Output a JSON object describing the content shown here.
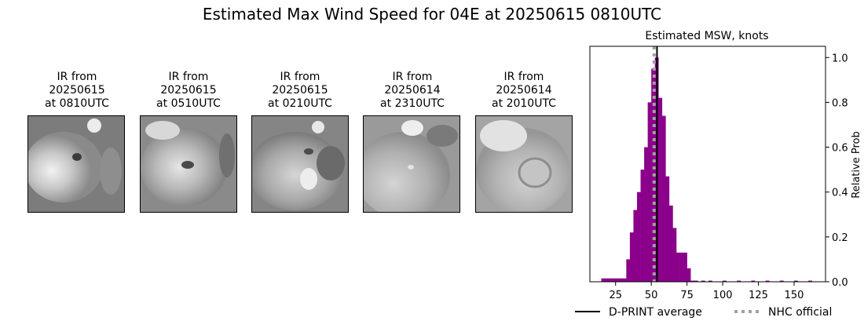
{
  "figure": {
    "title": "Estimated Max Wind Speed for 04E at 20250615 0810UTC"
  },
  "ir_panels": [
    {
      "line1": "IR from",
      "line2": "20250615",
      "line3": "at 0810UTC"
    },
    {
      "line1": "IR from",
      "line2": "20250615",
      "line3": "at 0510UTC"
    },
    {
      "line1": "IR from",
      "line2": "20250615",
      "line3": "at 0210UTC"
    },
    {
      "line1": "IR from",
      "line2": "20250614",
      "line3": "at 2310UTC"
    },
    {
      "line1": "IR from",
      "line2": "20250614",
      "line3": "at 2010UTC"
    }
  ],
  "chart_data": {
    "type": "bar",
    "title": "Estimated MSW, knots",
    "xlabel": "",
    "ylabel": "Relative Prob",
    "y_axis_side": "right",
    "xlim": [
      7,
      172
    ],
    "ylim": [
      0,
      1.05
    ],
    "x_ticks": [
      25,
      50,
      75,
      100,
      125,
      150
    ],
    "y_ticks": [
      0.0,
      0.2,
      0.4,
      0.6,
      0.8,
      1.0
    ],
    "y_tick_labels": [
      "0.0",
      "0.2",
      "0.4",
      "0.6",
      "0.8",
      "1.0"
    ],
    "bin_width": 2.5,
    "bar_color": "#8b008b",
    "bins": [
      {
        "x0": 15,
        "value": 0.015
      },
      {
        "x0": 17.5,
        "value": 0.015
      },
      {
        "x0": 20,
        "value": 0.015
      },
      {
        "x0": 22.5,
        "value": 0.015
      },
      {
        "x0": 25,
        "value": 0.015
      },
      {
        "x0": 27.5,
        "value": 0.015
      },
      {
        "x0": 30,
        "value": 0.015
      },
      {
        "x0": 32.5,
        "value": 0.1
      },
      {
        "x0": 35,
        "value": 0.22
      },
      {
        "x0": 37.5,
        "value": 0.32
      },
      {
        "x0": 40,
        "value": 0.4
      },
      {
        "x0": 42.5,
        "value": 0.5
      },
      {
        "x0": 45,
        "value": 0.6
      },
      {
        "x0": 47.5,
        "value": 0.8
      },
      {
        "x0": 50,
        "value": 0.95
      },
      {
        "x0": 52.5,
        "value": 1.0
      },
      {
        "x0": 55,
        "value": 0.82
      },
      {
        "x0": 57.5,
        "value": 0.74
      },
      {
        "x0": 60,
        "value": 0.47
      },
      {
        "x0": 62.5,
        "value": 0.34
      },
      {
        "x0": 65,
        "value": 0.24
      },
      {
        "x0": 67.5,
        "value": 0.13
      },
      {
        "x0": 70,
        "value": 0.13
      },
      {
        "x0": 72.5,
        "value": 0.13
      },
      {
        "x0": 75,
        "value": 0.06
      },
      {
        "x0": 77.5,
        "value": 0.005
      },
      {
        "x0": 80,
        "value": 0.005
      },
      {
        "x0": 85,
        "value": 0.005
      },
      {
        "x0": 90,
        "value": 0.005
      },
      {
        "x0": 100,
        "value": 0.005
      },
      {
        "x0": 110,
        "value": 0.005
      },
      {
        "x0": 120,
        "value": 0.005
      },
      {
        "x0": 130,
        "value": 0.005
      },
      {
        "x0": 140,
        "value": 0.005
      },
      {
        "x0": 150,
        "value": 0.005
      },
      {
        "x0": 160,
        "value": 0.005
      }
    ],
    "dprint_average": 54,
    "nhc_official": 52,
    "legend": {
      "placement": "below",
      "entries": [
        {
          "name": "D-PRINT average",
          "color": "#000000",
          "style": "solid"
        },
        {
          "name": "NHC official",
          "color": "#a0a0a0",
          "style": "dotted"
        }
      ]
    }
  }
}
